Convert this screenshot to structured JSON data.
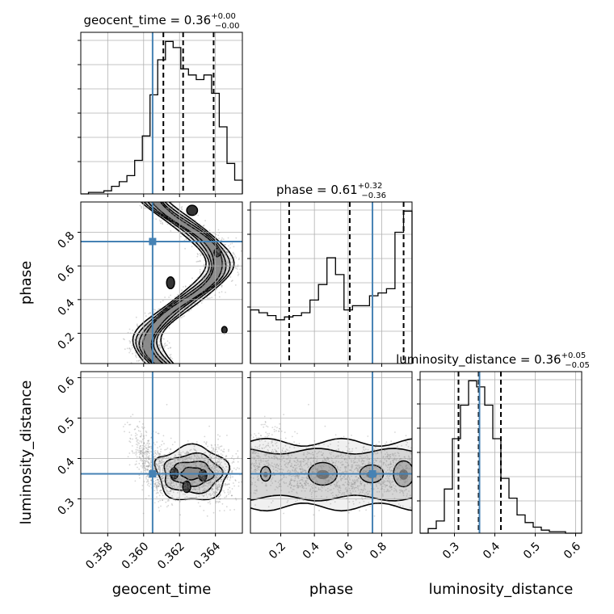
{
  "chart_data": {
    "type": "corner",
    "parameters": [
      "geocent_time",
      "phase",
      "luminosity_distance"
    ],
    "truth_color": "#4682b4",
    "truths": [
      0.3605,
      0.745,
      0.362
    ],
    "titles": [
      {
        "param": "geocent_time",
        "text": "geocent_time = 0.36",
        "sup": "+0.00",
        "sub": "−0.00"
      },
      {
        "param": "phase",
        "text": "phase = 0.61",
        "sup": "+0.32",
        "sub": "−0.36"
      },
      {
        "param": "luminosity_distance",
        "text": "luminosity_distance = 0.36",
        "sup": "+0.05",
        "sub": "−0.05"
      }
    ],
    "ranges": {
      "geocent_time": [
        0.3565,
        0.3655
      ],
      "phase": [
        0.02,
        0.98
      ],
      "luminosity_distance": [
        0.215,
        0.615
      ]
    },
    "ticks": {
      "geocent_time": [
        "0.358",
        "0.360",
        "0.362",
        "0.364"
      ],
      "phase": [
        "0.2",
        "0.4",
        "0.6",
        "0.8"
      ],
      "luminosity_distance": [
        "0.3",
        "0.4",
        "0.5",
        "0.6"
      ]
    },
    "quantiles": {
      "geocent_time": [
        0.3611,
        0.3622,
        0.3639
      ],
      "phase": [
        0.25,
        0.61,
        0.93
      ],
      "luminosity_distance": [
        0.31,
        0.36,
        0.415
      ]
    },
    "histograms": {
      "geocent_time": {
        "edges": [
          0.3565,
          0.3655
        ],
        "counts": [
          0,
          1,
          1,
          2,
          5,
          8,
          12,
          22,
          38,
          65,
          88,
          100,
          96,
          82,
          78,
          75,
          78,
          66,
          44,
          20,
          9
        ]
      },
      "phase": {
        "edges": [
          0.02,
          0.98
        ],
        "counts": [
          38,
          36,
          34,
          31,
          33,
          34,
          36,
          45,
          56,
          75,
          63,
          38,
          41,
          41,
          48,
          50,
          53,
          93,
          108
        ]
      },
      "luminosity_distance": {
        "edges": [
          0.215,
          0.615
        ],
        "counts": [
          0,
          3,
          8,
          29,
          62,
          84,
          100,
          96,
          84,
          62,
          36,
          23,
          12,
          7,
          4,
          2,
          1,
          1,
          0,
          0
        ]
      }
    }
  }
}
